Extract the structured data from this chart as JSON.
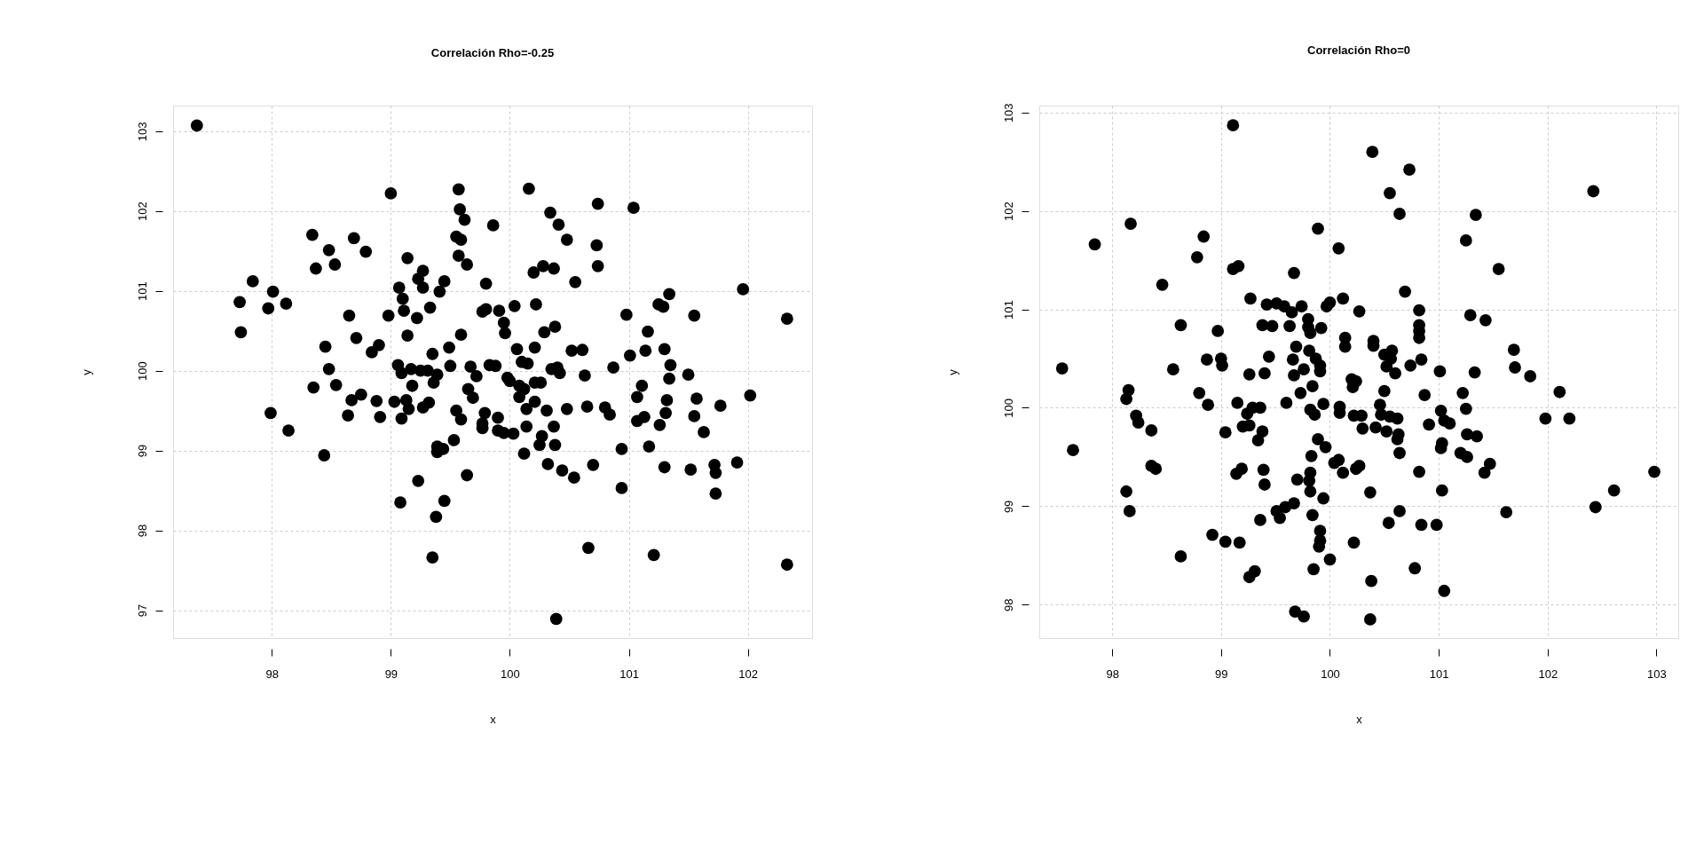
{
  "chart_data": [
    {
      "type": "scatter",
      "title": "Correlación Rho=-0.25",
      "xlabel": "x",
      "ylabel": "y",
      "color": "#000000",
      "marker": "circle",
      "grid": true,
      "xlim": [
        97.17,
        102.54
      ],
      "ylim": [
        96.65,
        103.32
      ],
      "xticks": [
        98,
        99,
        100,
        101,
        102
      ],
      "yticks": [
        97,
        98,
        99,
        100,
        101,
        102,
        103
      ],
      "x": [
        97.37,
        99.0,
        99.57,
        100.16,
        99.58,
        99.62,
        99.86,
        100.34,
        100.41,
        100.48,
        100.74,
        101.04,
        100.73,
        100.74,
        98.34,
        98.69,
        98.48,
        98.79,
        98.37,
        98.53,
        99.14,
        99.55,
        99.59,
        99.57,
        99.64,
        100.2,
        100.28,
        100.37,
        100.55,
        97.84,
        98.01,
        97.73,
        97.97,
        98.12,
        97.74,
        99.27,
        99.23,
        99.27,
        99.07,
        99.45,
        99.41,
        99.1,
        99.11,
        99.22,
        99.33,
        98.98,
        98.65,
        99.8,
        99.77,
        99.8,
        99.91,
        99.95,
        99.96,
        100.04,
        100.22,
        100.29,
        100.38,
        100.98,
        101.25,
        101.29,
        101.34,
        101.55,
        101.96,
        102.33,
        101.16,
        101.14,
        101.3,
        101.01,
        101.35,
        101.5,
        100.87,
        100.63,
        100.61,
        100.52,
        100.4,
        100.35,
        100.42,
        100.06,
        100.21,
        100.1,
        100.15,
        99.14,
        98.71,
        98.45,
        98.48,
        98.84,
        98.9,
        99.35,
        99.49,
        99.59,
        99.5,
        99.67,
        99.83,
        99.88,
        99.06,
        99.17,
        99.25,
        99.31,
        99.39,
        99.09,
        99.72,
        99.98,
        98.35,
        98.54,
        98.67,
        98.75,
        98.64,
        98.88,
        98.91,
        97.99,
        98.14,
        98.44,
        99.03,
        99.13,
        99.15,
        99.09,
        99.18,
        99.36,
        99.27,
        99.32,
        99.39,
        99.44,
        99.39,
        99.53,
        99.55,
        99.59,
        99.65,
        99.69,
        99.79,
        99.77,
        99.77,
        99.9,
        99.9,
        99.95,
        100.03,
        100.0,
        100.08,
        100.08,
        100.12,
        100.21,
        100.26,
        100.14,
        100.21,
        100.31,
        100.14,
        100.27,
        100.25,
        100.38,
        100.37,
        100.48,
        100.65,
        100.8,
        100.84,
        101.07,
        101.11,
        101.07,
        101.13,
        101.32,
        101.31,
        101.26,
        101.34,
        101.57,
        101.55,
        101.63,
        101.77,
        102.02,
        100.94,
        101.17,
        100.12,
        100.32,
        100.44,
        100.54,
        100.7,
        100.94,
        101.3,
        101.52,
        101.72,
        101.73,
        101.91,
        101.73,
        99.64,
        99.23,
        99.08,
        99.45,
        99.38,
        99.35,
        100.66,
        101.21,
        102.33,
        100.39
      ],
      "values": [
        103.07,
        102.22,
        102.27,
        102.28,
        102.02,
        101.89,
        101.82,
        101.98,
        101.83,
        101.64,
        102.09,
        102.04,
        101.57,
        101.31,
        101.7,
        101.66,
        101.51,
        101.49,
        101.28,
        101.33,
        101.41,
        101.68,
        101.64,
        101.44,
        101.33,
        101.23,
        101.31,
        101.28,
        101.11,
        101.12,
        100.99,
        100.86,
        100.78,
        100.84,
        100.48,
        101.25,
        101.15,
        101.04,
        101.04,
        101.12,
        100.99,
        100.9,
        100.75,
        100.66,
        100.79,
        100.69,
        100.69,
        101.09,
        100.74,
        100.77,
        100.75,
        100.6,
        100.47,
        100.81,
        100.83,
        100.48,
        100.55,
        100.7,
        100.83,
        100.8,
        100.96,
        100.69,
        101.02,
        100.65,
        100.49,
        100.25,
        100.27,
        100.19,
        100.07,
        99.95,
        100.04,
        99.94,
        100.26,
        100.25,
        100.04,
        100.02,
        99.97,
        100.27,
        100.29,
        100.11,
        100.09,
        100.44,
        100.41,
        100.3,
        100.02,
        100.23,
        100.32,
        100.21,
        100.29,
        100.45,
        100.06,
        100.05,
        100.07,
        100.06,
        100.07,
        100.02,
        100.0,
        100.0,
        99.95,
        99.97,
        99.93,
        99.91,
        99.79,
        99.82,
        99.63,
        99.7,
        99.44,
        99.62,
        99.42,
        99.47,
        99.25,
        98.94,
        99.61,
        99.63,
        99.52,
        99.4,
        99.81,
        99.85,
        99.54,
        99.6,
        99.05,
        99.02,
        98.98,
        99.13,
        99.5,
        99.39,
        99.77,
        99.66,
        99.47,
        99.34,
        99.28,
        99.41,
        99.25,
        99.22,
        99.21,
        99.87,
        99.81,
        99.67,
        99.77,
        99.85,
        99.85,
        99.52,
        99.61,
        99.5,
        99.3,
        99.18,
        99.07,
        99.07,
        99.3,
        99.52,
        99.55,
        99.54,
        99.45,
        99.67,
        99.81,
        99.37,
        99.42,
        99.63,
        99.47,
        99.32,
        99.9,
        99.65,
        99.43,
        99.23,
        99.56,
        99.69,
        99.02,
        99.05,
        98.96,
        98.83,
        98.75,
        98.66,
        98.82,
        98.53,
        98.79,
        98.76,
        98.82,
        98.72,
        98.85,
        98.46,
        98.69,
        98.62,
        98.35,
        98.37,
        98.17,
        97.66,
        97.78,
        97.69,
        97.57,
        96.89
      ]
    },
    {
      "type": "scatter",
      "title": "Correlación Rho=0",
      "xlabel": "x",
      "ylabel": "y",
      "color": "#000000",
      "marker": "circle",
      "grid": true,
      "xlim": [
        97.33,
        103.2
      ],
      "ylim": [
        97.66,
        103.07
      ],
      "xticks": [
        98,
        99,
        100,
        101,
        102,
        103
      ],
      "yticks": [
        98,
        99,
        100,
        101,
        102,
        103
      ],
      "x": [
        99.11,
        100.39,
        100.73,
        100.55,
        102.42,
        100.64,
        101.34,
        98.17,
        97.84,
        98.84,
        98.78,
        99.11,
        99.16,
        99.89,
        100.08,
        101.25,
        101.55,
        98.46,
        99.67,
        100.69,
        99.27,
        99.42,
        99.51,
        99.58,
        99.65,
        99.74,
        99.97,
        100.0,
        100.12,
        100.27,
        100.82,
        100.82,
        100.82,
        100.82,
        101.29,
        101.43,
        98.63,
        98.97,
        99.38,
        99.47,
        99.63,
        99.8,
        99.8,
        99.82,
        99.92,
        100.14,
        100.14,
        100.4,
        100.4,
        99.69,
        99.81,
        99.87,
        99.91,
        99.91,
        100.57,
        100.5,
        100.56,
        100.52,
        100.6,
        100.74,
        100.84,
        101.01,
        101.33,
        101.69,
        101.7,
        101.84,
        102.11,
        97.54,
        98.56,
        98.87,
        99.0,
        99.01,
        99.44,
        99.66,
        99.76,
        99.67,
        99.26,
        99.4,
        99.84,
        99.73,
        100.2,
        100.24,
        100.21,
        100.5,
        100.87,
        101.22,
        98.15,
        98.13,
        98.8,
        98.88,
        99.15,
        99.29,
        99.36,
        99.6,
        99.82,
        99.86,
        99.94,
        100.09,
        100.09,
        100.22,
        100.29,
        100.46,
        100.47,
        100.55,
        100.62,
        101.02,
        101.05,
        101.1,
        101.25,
        101.98,
        102.2,
        99.24,
        99.2,
        99.26,
        99.04,
        99.38,
        99.34,
        98.36,
        98.22,
        98.24,
        97.64,
        100.3,
        100.42,
        100.52,
        100.63,
        100.62,
        100.91,
        101.03,
        101.02,
        101.26,
        101.35,
        101.2,
        101.26,
        101.47,
        101.42,
        99.89,
        99.96,
        99.83,
        100.64,
        100.04,
        100.08,
        100.12,
        100.24,
        100.27,
        100.82,
        102.98,
        98.36,
        98.4,
        99.14,
        99.19,
        99.39,
        99.4,
        99.7,
        99.82,
        99.81,
        99.82,
        99.94,
        100.37,
        101.03,
        98.13,
        98.16,
        99.51,
        99.59,
        99.67,
        99.54,
        99.84,
        99.36,
        100.64,
        100.54,
        100.84,
        100.98,
        101.62,
        102.44,
        102.61,
        98.92,
        99.04,
        99.17,
        98.63,
        99.91,
        99.91,
        99.9,
        100.22,
        100.0,
        99.85,
        99.31,
        99.26,
        100.38,
        100.78,
        101.05,
        99.68,
        99.76,
        100.37
      ],
      "values": [
        102.87,
        102.6,
        102.42,
        102.18,
        102.2,
        101.97,
        101.96,
        101.87,
        101.66,
        101.74,
        101.53,
        101.41,
        101.44,
        101.82,
        101.62,
        101.7,
        101.41,
        101.25,
        101.37,
        101.18,
        101.11,
        101.05,
        101.06,
        101.03,
        100.97,
        101.03,
        101.03,
        101.07,
        101.11,
        100.98,
        100.99,
        100.84,
        100.78,
        100.71,
        100.94,
        100.89,
        100.84,
        100.78,
        100.84,
        100.83,
        100.83,
        100.9,
        100.82,
        100.76,
        100.81,
        100.71,
        100.62,
        100.68,
        100.63,
        100.62,
        100.58,
        100.5,
        100.43,
        100.37,
        100.58,
        100.54,
        100.5,
        100.42,
        100.35,
        100.43,
        100.49,
        100.37,
        100.36,
        100.59,
        100.41,
        100.32,
        100.16,
        100.4,
        100.39,
        100.49,
        100.5,
        100.43,
        100.52,
        100.49,
        100.39,
        100.33,
        100.34,
        100.35,
        100.22,
        100.15,
        100.29,
        100.27,
        100.21,
        100.17,
        100.13,
        100.15,
        100.18,
        100.09,
        100.15,
        100.03,
        100.05,
        100.0,
        100.0,
        100.05,
        99.98,
        99.93,
        100.04,
        100.01,
        99.95,
        99.92,
        99.92,
        100.03,
        99.93,
        99.91,
        99.89,
        99.97,
        99.87,
        99.84,
        99.99,
        99.89,
        99.89,
        99.94,
        99.81,
        99.82,
        99.75,
        99.76,
        99.67,
        99.77,
        99.92,
        99.85,
        99.57,
        99.79,
        99.8,
        99.76,
        99.73,
        99.68,
        99.83,
        99.64,
        99.59,
        99.73,
        99.71,
        99.54,
        99.5,
        99.43,
        99.34,
        99.68,
        99.6,
        99.51,
        99.54,
        99.44,
        99.47,
        99.34,
        99.38,
        99.41,
        99.35,
        99.35,
        99.41,
        99.38,
        99.33,
        99.38,
        99.37,
        99.22,
        99.27,
        99.34,
        99.26,
        99.15,
        99.08,
        99.14,
        99.16,
        99.15,
        98.95,
        98.95,
        98.99,
        99.03,
        98.88,
        98.91,
        98.86,
        98.95,
        98.83,
        98.81,
        98.81,
        98.94,
        98.99,
        99.16,
        98.71,
        98.64,
        98.63,
        98.49,
        98.75,
        98.65,
        98.59,
        98.63,
        98.46,
        98.36,
        98.34,
        98.28,
        98.24,
        98.37,
        98.14,
        97.93,
        97.88,
        97.85
      ]
    }
  ]
}
